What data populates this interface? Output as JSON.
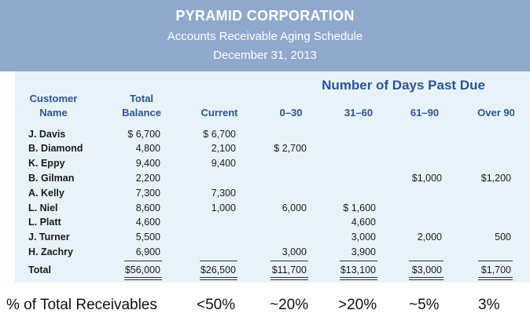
{
  "title": "PYRAMID CORPORATION",
  "subtitle": "Accounts Receivable Aging Schedule",
  "date": "December 31, 2013",
  "days_header": "Number of Days Past Due",
  "headers": {
    "customer_line1": "Customer",
    "customer_line2": "Name",
    "total_line1": "Total",
    "total_line2": "Balance",
    "current": "Current",
    "d0_30": "0–30",
    "d31_60": "31–60",
    "d61_90": "61–90",
    "over90": "Over 90"
  },
  "rows": [
    {
      "name": "J. Davis",
      "total": "$ 6,700",
      "current": "$ 6,700",
      "d0_30": "",
      "d31_60": "",
      "d61_90": "",
      "over90": ""
    },
    {
      "name": "B. Diamond",
      "total": "4,800",
      "current": "2,100",
      "d0_30": "$ 2,700",
      "d31_60": "",
      "d61_90": "",
      "over90": ""
    },
    {
      "name": "K. Eppy",
      "total": "9,400",
      "current": "9,400",
      "d0_30": "",
      "d31_60": "",
      "d61_90": "",
      "over90": ""
    },
    {
      "name": "B. Gilman",
      "total": "2,200",
      "current": "",
      "d0_30": "",
      "d31_60": "",
      "d61_90": "$1,000",
      "over90": "$1,200"
    },
    {
      "name": "A. Kelly",
      "total": "7,300",
      "current": "7,300",
      "d0_30": "",
      "d31_60": "",
      "d61_90": "",
      "over90": ""
    },
    {
      "name": "L. Niel",
      "total": "8,600",
      "current": "1,000",
      "d0_30": "6,000",
      "d31_60": "$ 1,600",
      "d61_90": "",
      "over90": ""
    },
    {
      "name": "L. Platt",
      "total": "4,600",
      "current": "",
      "d0_30": "",
      "d31_60": "4,600",
      "d61_90": "",
      "over90": ""
    },
    {
      "name": "J. Turner",
      "total": "5,500",
      "current": "",
      "d0_30": "",
      "d31_60": "3,000",
      "d61_90": "2,000",
      "over90": "500"
    },
    {
      "name": "H. Zachry",
      "total": "6,900",
      "current": "",
      "d0_30": "3,000",
      "d31_60": "3,900",
      "d61_90": "",
      "over90": ""
    }
  ],
  "totals": {
    "name": "Total",
    "total": "$56,000",
    "current": "$26,500",
    "d0_30": "$11,700",
    "d31_60": "$13,100",
    "d61_90": "$3,000",
    "over90": "$1,700"
  },
  "pct": {
    "label": "% of Total Receivables",
    "current": "<50%",
    "d0_30": "~20%",
    "d31_60": ">20%",
    "d61_90": "~5%",
    "over90": "3%"
  }
}
